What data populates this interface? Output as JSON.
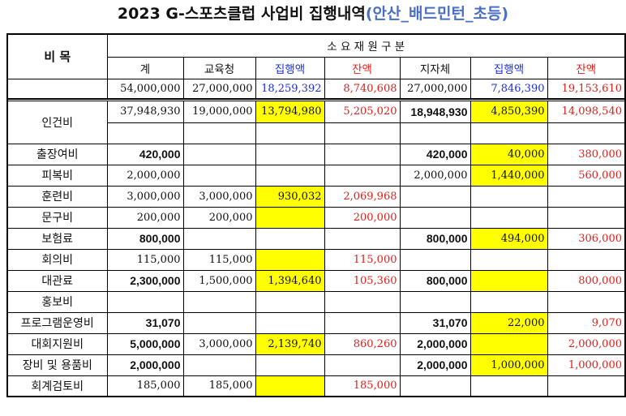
{
  "title": {
    "prefix": "2023 G-스포츠클럽 사업비 집행내역",
    "suffix": "(안산_배드민턴_초등)"
  },
  "header": {
    "item_label": "비 목",
    "group_label": "소 요 재 원 구 분",
    "columns": [
      "계",
      "교육청",
      "집행액",
      "잔액",
      "지자체",
      "집행액",
      "잔액"
    ]
  },
  "totals": [
    "54,000,000",
    "27,000,000",
    "18,259,392",
    "8,740,608",
    "27,000,000",
    "7,846,390",
    "19,153,610"
  ],
  "rows": [
    {
      "label": "인건비",
      "vals": [
        "37,948,930",
        "19,000,000",
        "13,794,980",
        "5,205,020",
        "18,948,930",
        "4,850,390",
        "14,098,540"
      ]
    },
    {
      "label": "출장여비",
      "vals": [
        "420,000",
        "",
        "",
        "",
        "420,000",
        "40,000",
        "380,000"
      ]
    },
    {
      "label": "피복비",
      "vals": [
        "2,000,000",
        "",
        "",
        "",
        "2,000,000",
        "1,440,000",
        "560,000"
      ]
    },
    {
      "label": "훈련비",
      "vals": [
        "3,000,000",
        "3,000,000",
        "930,032",
        "2,069,968",
        "",
        "",
        ""
      ]
    },
    {
      "label": "문구비",
      "vals": [
        "200,000",
        "200,000",
        "",
        "200,000",
        "",
        "",
        ""
      ]
    },
    {
      "label": "보험료",
      "vals": [
        "800,000",
        "",
        "",
        "",
        "800,000",
        "494,000",
        "306,000"
      ]
    },
    {
      "label": "회의비",
      "vals": [
        "115,000",
        "115,000",
        "",
        "115,000",
        "",
        "",
        ""
      ]
    },
    {
      "label": "대관료",
      "vals": [
        "2,300,000",
        "1,500,000",
        "1,394,640",
        "105,360",
        "800,000",
        "",
        "800,000"
      ]
    },
    {
      "label": "홍보비",
      "vals": [
        "",
        "",
        "",
        "",
        "",
        "",
        ""
      ]
    },
    {
      "label": "프로그램운영비",
      "vals": [
        "31,070",
        "",
        "",
        "",
        "31,070",
        "22,000",
        "9,070"
      ]
    },
    {
      "label": "대회지원비",
      "vals": [
        "5,000,000",
        "3,000,000",
        "2,139,740",
        "860,260",
        "2,000,000",
        "",
        "2,000,000"
      ]
    },
    {
      "label": "장비 및 용품비",
      "vals": [
        "2,000,000",
        "",
        "",
        "",
        "2,000,000",
        "1,000,000",
        "1,000,000"
      ]
    },
    {
      "label": "회계검토비",
      "vals": [
        "185,000",
        "185,000",
        "",
        "185,000",
        "",
        "",
        ""
      ]
    }
  ],
  "colors": {
    "highlight": "#ffff00",
    "exec": "#1a2ee6",
    "balance": "#e0201a",
    "title_accent": "#4a6fc4"
  }
}
